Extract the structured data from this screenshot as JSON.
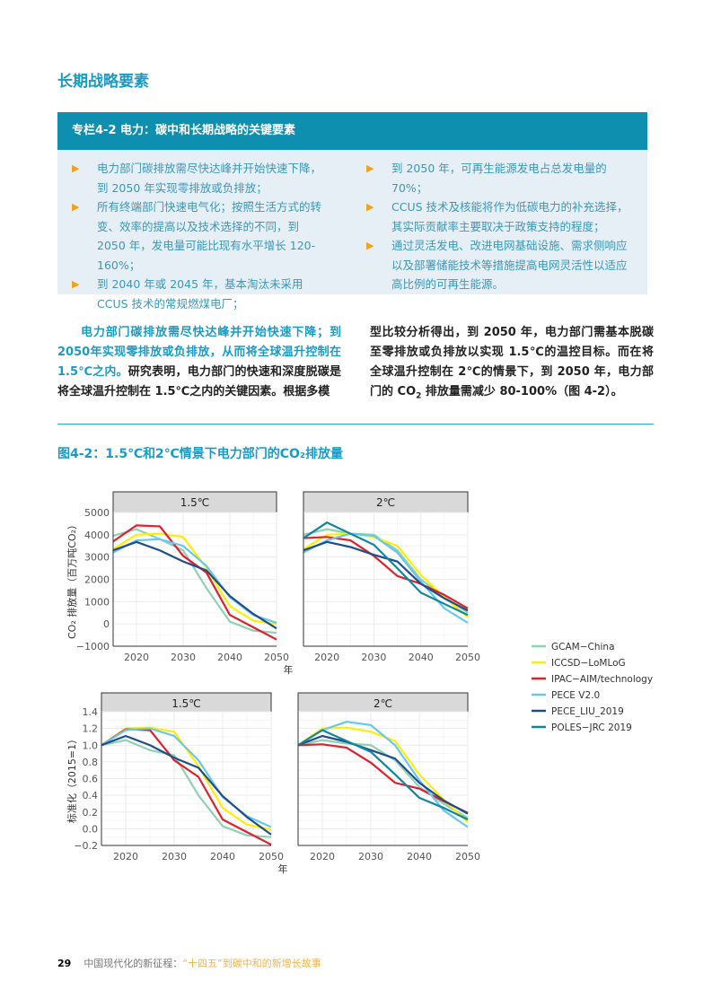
{
  "section_title": "长期战略要素",
  "box": {
    "title": "专栏4-2 电力：碳中和长期战略的关键要素",
    "left_bullets": [
      "电力部门碳排放需尽快达峰并开始快速下降，到 2050 年实现零排放或负排放；",
      "所有终端部门快速电气化；按照生活方式的转变、效率的提高以及技术选择的不同，到 2050 年，发电量可能比现有水平增长 120-160%；",
      "到 2040 年或 2045 年，基本淘汰未采用 CCUS 技术的常规燃煤电厂；"
    ],
    "right_bullets": [
      "到 2050 年，可再生能源发电占总发电量的 70%；",
      "CCUS 技术及核能将作为低碳电力的补充选择，其实际贡献率主要取决于政策支持的程度；",
      "通过灵活发电、改进电网基础设施、需求侧响应以及部署储能技术等措施提高电网灵活性以适应高比例的可再生能源。"
    ]
  },
  "body": {
    "left_highlight": "电力部门碳排放需尽快达峰并开始快速下降；到2050年实现零排放或负排放，从而将全球温升控制在1.5℃之内。",
    "left_rest": "研究表明，电力部门的快速和深度脱碳是将全球温升控制在 1.5℃之内的关键因素。根据多模",
    "right_a": "型比较分析得出，到 2050 年，电力部门需基本脱碳至零排放或负排放以实现 1.5℃的温控目标。而在将全球温升控制在 2℃的情景下，到 2050 年，电力部门的 CO",
    "right_sub": "2",
    "right_b": " 排放量需减少 80-100%（图 4-2）。"
  },
  "figure_title": "图4-2：1.5℃和2℃情景下电力部门的CO₂排放量",
  "footer": {
    "page": "29",
    "book": "中国现代化的新征程：",
    "subtitle": "“十四五”到碳中和的新增长故事"
  },
  "chart_data": [
    {
      "type": "line",
      "title": "1.5℃",
      "ylabel": "CO₂ 排放量（百万吨CO₂）",
      "xlabel": "年",
      "x": [
        2015,
        2020,
        2025,
        2030,
        2035,
        2040,
        2045,
        2050
      ],
      "xlim": [
        2015,
        2050
      ],
      "xticks": [
        2020,
        2030,
        2040,
        2050
      ],
      "ylim": [
        -1000,
        5000
      ],
      "yticks": [
        -1000,
        0,
        1000,
        2000,
        3000,
        4000,
        5000
      ],
      "ytick_labels": [
        "−1000",
        "0",
        "1000",
        "2000",
        "3000",
        "4000",
        "5000"
      ],
      "series": [
        {
          "name": "GCAM−China",
          "values": [
            3950,
            4250,
            3800,
            3300,
            1600,
            100,
            -300,
            -400
          ]
        },
        {
          "name": "ICCSD−LoMLoG",
          "values": [
            3350,
            4000,
            4050,
            3900,
            2500,
            800,
            150,
            0
          ]
        },
        {
          "name": "IPAC−AIM/technology",
          "values": [
            3700,
            4420,
            4380,
            3050,
            2300,
            400,
            -150,
            -700
          ]
        },
        {
          "name": "PECE V2.0",
          "values": [
            3200,
            3750,
            3800,
            3500,
            2600,
            1200,
            400,
            50
          ]
        },
        {
          "name": "PECE_LIU_2019",
          "values": [
            3300,
            3680,
            3300,
            2800,
            2400,
            1250,
            450,
            -200
          ]
        }
      ]
    },
    {
      "type": "line",
      "title": "2℃",
      "x": [
        2015,
        2020,
        2025,
        2030,
        2035,
        2040,
        2045,
        2050
      ],
      "xlim": [
        2015,
        2050
      ],
      "xticks": [
        2020,
        2030,
        2040,
        2050
      ],
      "ylim": [
        -1000,
        5000
      ],
      "series": [
        {
          "name": "GCAM−China",
          "values": [
            4000,
            4250,
            4050,
            4000,
            3300,
            2000,
            1200,
            500
          ]
        },
        {
          "name": "ICCSD−LoMLoG",
          "values": [
            3350,
            4000,
            4050,
            3900,
            3500,
            2200,
            1200,
            300
          ]
        },
        {
          "name": "IPAC−AIM/technology",
          "values": [
            3850,
            3900,
            3750,
            3050,
            2150,
            1800,
            1300,
            700
          ]
        },
        {
          "name": "PECE V2.0",
          "values": [
            3200,
            3750,
            4050,
            3950,
            3200,
            1900,
            700,
            50
          ]
        },
        {
          "name": "PECE_LIU_2019",
          "values": [
            3300,
            3680,
            3450,
            3100,
            2800,
            1800,
            1150,
            600
          ]
        },
        {
          "name": "POLES−JRC 2019",
          "values": [
            3850,
            4550,
            4050,
            3550,
            2500,
            1400,
            900,
            400
          ]
        }
      ]
    },
    {
      "type": "line",
      "title": "1.5℃",
      "ylabel": "标准化（2015=1）",
      "xlabel": "年",
      "x": [
        2015,
        2020,
        2025,
        2030,
        2035,
        2040,
        2045,
        2050
      ],
      "xlim": [
        2015,
        2050
      ],
      "xticks": [
        2020,
        2030,
        2040,
        2050
      ],
      "ylim": [
        -0.2,
        1.4
      ],
      "yticks": [
        -0.2,
        0,
        0.2,
        0.4,
        0.6,
        0.8,
        1.0,
        1.2,
        1.4
      ],
      "ytick_labels": [
        "−0.2",
        "0.0",
        "0.2",
        "0.4",
        "0.6",
        "0.8",
        "1.0",
        "1.2",
        "1.4"
      ],
      "series": [
        {
          "name": "GCAM−China",
          "values": [
            1,
            1.06,
            0.94,
            0.88,
            0.4,
            0.03,
            -0.08,
            -0.1
          ]
        },
        {
          "name": "ICCSD−LoMLoG",
          "values": [
            1,
            1.2,
            1.21,
            1.16,
            0.75,
            0.25,
            0.05,
            -0.01
          ]
        },
        {
          "name": "IPAC−AIM/technology",
          "values": [
            1,
            1.19,
            1.18,
            0.82,
            0.62,
            0.11,
            -0.04,
            -0.19
          ]
        },
        {
          "name": "PECE V2.0",
          "values": [
            1,
            1.18,
            1.2,
            1.11,
            0.82,
            0.38,
            0.15,
            0.02
          ]
        },
        {
          "name": "PECE_LIU_2019",
          "values": [
            1,
            1.11,
            1.0,
            0.85,
            0.73,
            0.39,
            0.14,
            -0.07
          ]
        }
      ]
    },
    {
      "type": "line",
      "title": "2℃",
      "x": [
        2015,
        2020,
        2025,
        2030,
        2035,
        2040,
        2045,
        2050
      ],
      "xlim": [
        2015,
        2050
      ],
      "xticks": [
        2020,
        2030,
        2040,
        2050
      ],
      "ylim": [
        -0.2,
        1.4
      ],
      "series": [
        {
          "name": "GCAM−China",
          "values": [
            1,
            1.06,
            1.02,
            1.0,
            0.82,
            0.5,
            0.3,
            0.13
          ]
        },
        {
          "name": "ICCSD−LoMLoG",
          "values": [
            1,
            1.2,
            1.21,
            1.16,
            1.05,
            0.65,
            0.35,
            0.08
          ]
        },
        {
          "name": "IPAC−AIM/technology",
          "values": [
            1,
            1.01,
            0.97,
            0.79,
            0.55,
            0.48,
            0.33,
            0.19
          ]
        },
        {
          "name": "PECE V2.0",
          "values": [
            1,
            1.18,
            1.28,
            1.24,
            1.0,
            0.58,
            0.22,
            0.02
          ]
        },
        {
          "name": "PECE_LIU_2019",
          "values": [
            1,
            1.11,
            1.04,
            0.94,
            0.84,
            0.55,
            0.34,
            0.18
          ]
        },
        {
          "name": "POLES−JRC 2019",
          "values": [
            1,
            1.18,
            1.05,
            0.92,
            0.65,
            0.37,
            0.25,
            0.11
          ]
        }
      ]
    }
  ],
  "legend": [
    {
      "name": "GCAM−China",
      "color": "#8fd1b5"
    },
    {
      "name": "ICCSD−LoMLoG",
      "color": "#ffee00"
    },
    {
      "name": "IPAC−AIM/technology",
      "color": "#e0202a"
    },
    {
      "name": "PECE V2.0",
      "color": "#66c8f0"
    },
    {
      "name": "PECE_LIU_2019",
      "color": "#1f4e89"
    },
    {
      "name": "POLES−JRC 2019",
      "color": "#0e879f"
    }
  ]
}
